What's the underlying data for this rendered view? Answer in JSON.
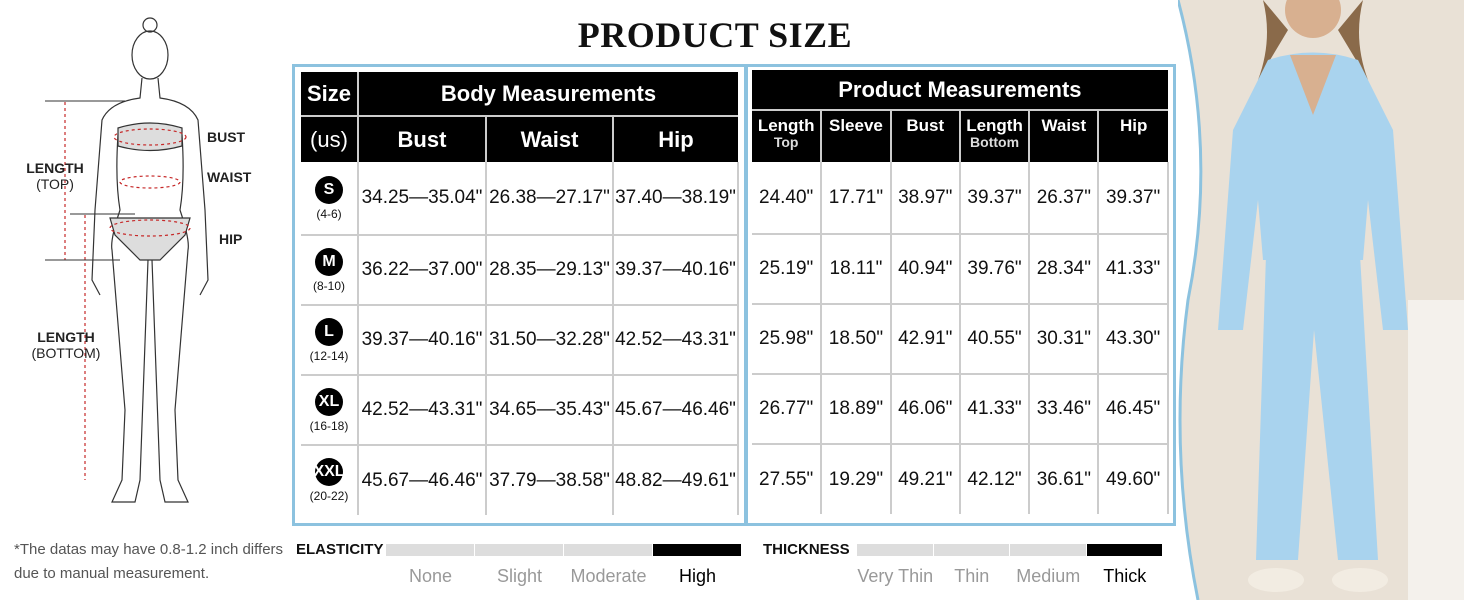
{
  "title": "PRODUCT SIZE",
  "figure": {
    "labels": {
      "bust": "BUST",
      "waist": "WAIST",
      "hip": "HIP",
      "length_top": "LENGTH",
      "length_top_sub": "(TOP)",
      "length_bottom": "LENGTH",
      "length_bottom_sub": "(BOTTOM)"
    },
    "note": "*The datas may have 0.8-1.2 inch differs due to manual measurement."
  },
  "body_table": {
    "size_header": "Size",
    "size_sub": "(us)",
    "group_header": "Body Measurements",
    "columns": [
      "Bust",
      "Waist",
      "Hip"
    ],
    "rows": [
      {
        "size": "S",
        "us": "(4-6)",
        "values": [
          "34.25—35.04\"",
          "26.38—27.17\"",
          "37.40—38.19\""
        ]
      },
      {
        "size": "M",
        "us": "(8-10)",
        "values": [
          "36.22—37.00\"",
          "28.35—29.13\"",
          "39.37—40.16\""
        ]
      },
      {
        "size": "L",
        "us": "(12-14)",
        "values": [
          "39.37—40.16\"",
          "31.50—32.28\"",
          "42.52—43.31\""
        ]
      },
      {
        "size": "XL",
        "us": "(16-18)",
        "values": [
          "42.52—43.31\"",
          "34.65—35.43\"",
          "45.67—46.46\""
        ]
      },
      {
        "size": "XXL",
        "us": "(20-22)",
        "values": [
          "45.67—46.46\"",
          "37.79—38.58\"",
          "48.82—49.61\""
        ]
      }
    ]
  },
  "product_table": {
    "group_header": "Product Measurements",
    "columns": [
      {
        "main": "Length",
        "sub": "Top"
      },
      {
        "main": "Sleeve",
        "sub": ""
      },
      {
        "main": "Bust",
        "sub": ""
      },
      {
        "main": "Length",
        "sub": "Bottom"
      },
      {
        "main": "Waist",
        "sub": ""
      },
      {
        "main": "Hip",
        "sub": ""
      }
    ],
    "rows": [
      [
        "24.40\"",
        "17.71\"",
        "38.97\"",
        "39.37\"",
        "26.37\"",
        "39.37\""
      ],
      [
        "25.19\"",
        "18.11\"",
        "40.94\"",
        "39.76\"",
        "28.34\"",
        "41.33\""
      ],
      [
        "25.98\"",
        "18.50\"",
        "42.91\"",
        "40.55\"",
        "30.31\"",
        "43.30\""
      ],
      [
        "26.77\"",
        "18.89\"",
        "46.06\"",
        "41.33\"",
        "33.46\"",
        "46.45\""
      ],
      [
        "27.55\"",
        "19.29\"",
        "49.21\"",
        "42.12\"",
        "36.61\"",
        "49.60\""
      ]
    ]
  },
  "elasticity": {
    "label": "ELASTICITY",
    "options": [
      "None",
      "Slight",
      "Moderate",
      "High"
    ],
    "selected": "High"
  },
  "thickness": {
    "label": "THICKNESS",
    "options": [
      "Very Thin",
      "Thin",
      "Medium",
      "Thick"
    ],
    "selected": "Thick"
  },
  "colors": {
    "accent_border": "#8cc2df",
    "header_bg": "#000000",
    "product_color": "#a9d3ee"
  }
}
